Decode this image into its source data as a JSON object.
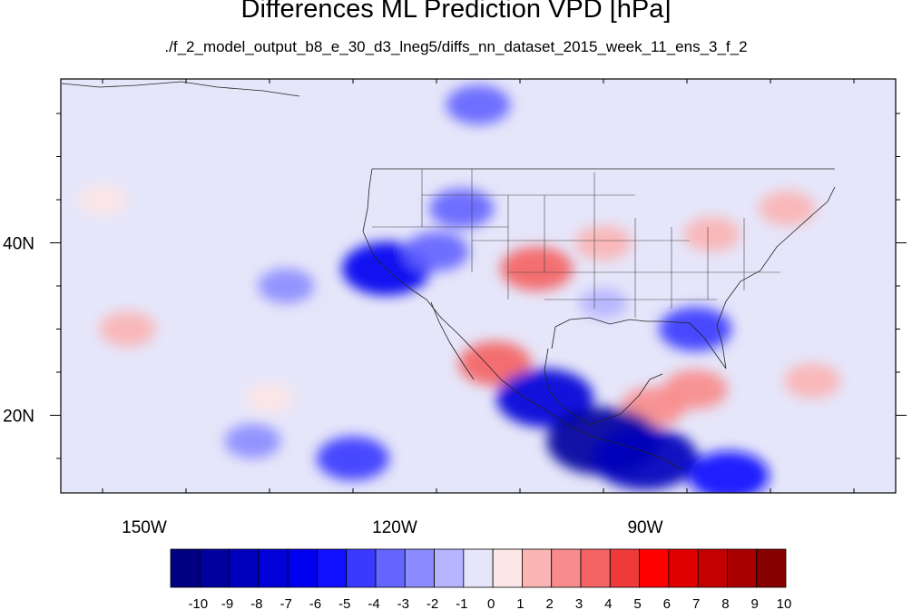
{
  "chart_data": {
    "type": "heatmap",
    "title": "Differences ML Prediction VPD [hPa]",
    "subtitle": "./f_2_model_output_b8_e_30_d3_lneg5/diffs_nn_dataset_2015_week_11_ens_3_f_2",
    "projection": "cylindrical equidistant map",
    "lon_range": [
      -160,
      -60
    ],
    "lat_range": [
      11,
      59
    ],
    "x_tick_labels": [
      {
        "lon": -150,
        "label": "150W"
      },
      {
        "lon": -120,
        "label": "120W"
      },
      {
        "lon": -90,
        "label": "90W"
      }
    ],
    "y_tick_labels": [
      {
        "lat": 40,
        "label": "40N"
      },
      {
        "lat": 20,
        "label": "20N"
      }
    ],
    "colorbar": {
      "levels": [
        -10,
        -9,
        -8,
        -7,
        -6,
        -5,
        -4,
        -3,
        -2,
        -1,
        0,
        1,
        2,
        3,
        4,
        5,
        6,
        7,
        8,
        9,
        10
      ],
      "colors": [
        "#000080",
        "#00009e",
        "#0000bc",
        "#0000d8",
        "#0000f0",
        "#1010ff",
        "#3a3aff",
        "#6464ff",
        "#8c8cff",
        "#b4b4ff",
        "#e6e6fa",
        "#fde6e6",
        "#fbb4b4",
        "#f88c8c",
        "#f46464",
        "#f03a3a",
        "#ff0000",
        "#e00000",
        "#c40000",
        "#a80000",
        "#860000"
      ]
    },
    "anomaly_regions": [
      {
        "lon": -103,
        "lat": 37,
        "value": 4
      },
      {
        "lon": -95,
        "lat": 40,
        "value": 2
      },
      {
        "lon": -82,
        "lat": 41,
        "value": 2
      },
      {
        "lon": -73,
        "lat": 44,
        "value": 2
      },
      {
        "lon": -84,
        "lat": 23,
        "value": 3
      },
      {
        "lon": -70,
        "lat": 24,
        "value": 2
      },
      {
        "lon": -89,
        "lat": 21,
        "value": 3
      },
      {
        "lon": -152,
        "lat": 30,
        "value": 2
      },
      {
        "lon": -135,
        "lat": 22,
        "value": 1
      },
      {
        "lon": -155,
        "lat": 45,
        "value": 1
      },
      {
        "lon": -108,
        "lat": 26,
        "value": 4
      },
      {
        "lon": -121,
        "lat": 37,
        "value": -6
      },
      {
        "lon": -115,
        "lat": 39,
        "value": -3
      },
      {
        "lon": -112,
        "lat": 44,
        "value": -3
      },
      {
        "lon": -102,
        "lat": 22,
        "value": -7
      },
      {
        "lon": -95,
        "lat": 17,
        "value": -9
      },
      {
        "lon": -90,
        "lat": 15,
        "value": -8
      },
      {
        "lon": -84,
        "lat": 30,
        "value": -4
      },
      {
        "lon": -110,
        "lat": 56,
        "value": -3
      },
      {
        "lon": -125,
        "lat": 15,
        "value": -4
      },
      {
        "lon": -137,
        "lat": 17,
        "value": -2
      },
      {
        "lon": -133,
        "lat": 35,
        "value": -2
      },
      {
        "lon": -80,
        "lat": 13,
        "value": -5
      },
      {
        "lon": -95,
        "lat": 33,
        "value": -1
      }
    ]
  }
}
